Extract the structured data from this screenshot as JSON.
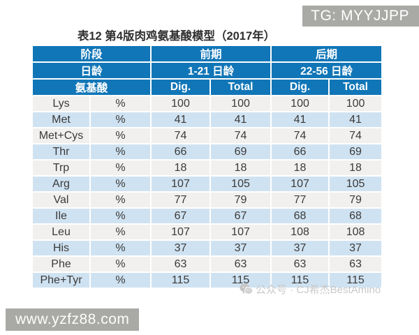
{
  "page": {
    "title": "表12 第4版肉鸡氨基酸模型（2017年）"
  },
  "watermarks": {
    "top_right": "TG: MYYJJPP",
    "bottom_center": "公众号 · CJ希杰BestAmino",
    "bottom_left": "www.yzfz88.com"
  },
  "chart_data": {
    "type": "table",
    "title": "表12 第4版肉鸡氨基酸模型（2017年）",
    "header_rows": [
      {
        "cells": [
          {
            "label": "阶段"
          },
          {
            "label": "前期"
          },
          {
            "label": "后期"
          }
        ]
      },
      {
        "cells": [
          {
            "label": "日龄"
          },
          {
            "label": "1-21 日龄"
          },
          {
            "label": "22-56 日龄"
          }
        ]
      },
      {
        "cells": [
          {
            "label": "氨基酸"
          },
          {
            "label": "Dig."
          },
          {
            "label": "Total"
          },
          {
            "label": "Dig."
          },
          {
            "label": "Total"
          }
        ]
      }
    ],
    "rows": [
      [
        "Lys",
        "%",
        "100",
        "100",
        "100",
        "100"
      ],
      [
        "Met",
        "%",
        "41",
        "41",
        "41",
        "41"
      ],
      [
        "Met+Cys",
        "%",
        "74",
        "74",
        "74",
        "74"
      ],
      [
        "Thr",
        "%",
        "66",
        "69",
        "66",
        "69"
      ],
      [
        "Trp",
        "%",
        "18",
        "18",
        "18",
        "18"
      ],
      [
        "Arg",
        "%",
        "107",
        "105",
        "107",
        "105"
      ],
      [
        "Val",
        "%",
        "77",
        "79",
        "77",
        "79"
      ],
      [
        "Ile",
        "%",
        "67",
        "67",
        "68",
        "68"
      ],
      [
        "Leu",
        "%",
        "107",
        "107",
        "108",
        "108"
      ],
      [
        "His",
        "%",
        "37",
        "37",
        "37",
        "37"
      ],
      [
        "Phe",
        "%",
        "63",
        "63",
        "63",
        "63"
      ],
      [
        "Phe+Tyr",
        "%",
        "115",
        "115",
        "115",
        "115"
      ]
    ]
  },
  "colors": {
    "header_blue": "#1176b7",
    "row_alt_light_blue": "#cfe2f1",
    "row_off_white": "#f1f0ee",
    "badge_grey": "#a9a9a6",
    "watermark_text_grey": "#c9c9c9",
    "cell_text": "#3a3a3a"
  },
  "icons": {
    "wechat": "wechat-icon"
  }
}
